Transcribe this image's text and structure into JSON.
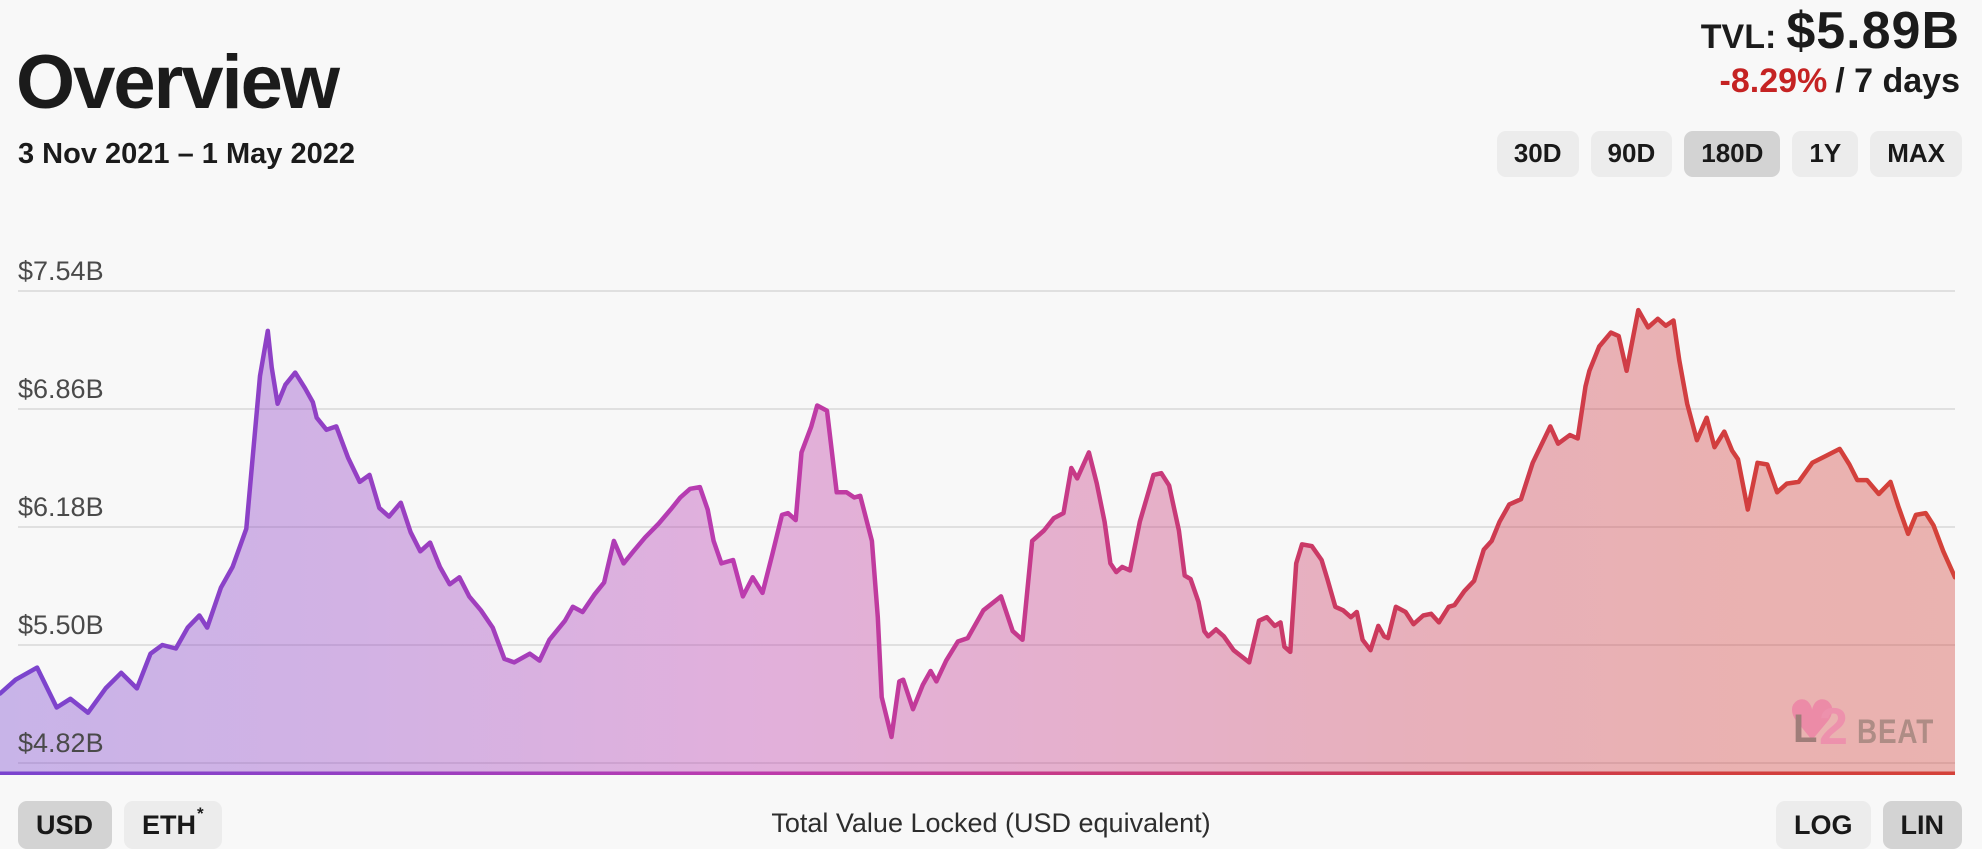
{
  "header": {
    "title": "Overview",
    "tvl_label": "TVL:",
    "tvl_value": "$5.89B",
    "change": "-8.29%",
    "change_period": "/ 7 days",
    "change_color": "#c52323"
  },
  "toolbar": {
    "date_range": "3 Nov 2021 – 1 May 2022",
    "range_buttons": [
      {
        "label": "30D",
        "selected": false
      },
      {
        "label": "90D",
        "selected": false
      },
      {
        "label": "180D",
        "selected": true
      },
      {
        "label": "1Y",
        "selected": false
      },
      {
        "label": "MAX",
        "selected": false
      }
    ]
  },
  "footer": {
    "currency_buttons": [
      {
        "label": "USD",
        "suffix": "",
        "selected": true
      },
      {
        "label": "ETH",
        "suffix": "*",
        "selected": false
      }
    ],
    "scale_buttons": [
      {
        "label": "LOG",
        "selected": false
      },
      {
        "label": "LIN",
        "selected": true
      }
    ],
    "caption": "Total Value Locked (USD equivalent)"
  },
  "watermark": {
    "prefix": "L",
    "digit": "2",
    "suffix": "BEAT",
    "heart_icon": "♥"
  },
  "chart_data": {
    "type": "area",
    "title": "Total Value Locked (USD equivalent)",
    "x_start": "3 Nov 2021",
    "x_end": "1 May 2022",
    "x_unit": "fraction of 180-day window",
    "y_unit": "USD billions",
    "ylim": [
      4.82,
      7.54
    ],
    "y_ticks": [
      "$7.54B",
      "$6.86B",
      "$6.18B",
      "$5.50B",
      "$4.82B"
    ],
    "y_tick_values": [
      7.54,
      6.86,
      6.18,
      5.5,
      4.82
    ],
    "grid": true,
    "legend": false,
    "gradient_stops": [
      {
        "offset": "0%",
        "color": "#7a44ce"
      },
      {
        "offset": "18%",
        "color": "#9440c4"
      },
      {
        "offset": "38%",
        "color": "#bc3bae"
      },
      {
        "offset": "55%",
        "color": "#c73a86"
      },
      {
        "offset": "72%",
        "color": "#cc3a58"
      },
      {
        "offset": "88%",
        "color": "#d23e3e"
      },
      {
        "offset": "100%",
        "color": "#d4423a"
      }
    ],
    "fill_opacity": 0.38,
    "points": [
      [
        0,
        5.22
      ],
      [
        0.008,
        5.3
      ],
      [
        0.019,
        5.37
      ],
      [
        0.029,
        5.14
      ],
      [
        0.036,
        5.19
      ],
      [
        0.045,
        5.11
      ],
      [
        0.054,
        5.25
      ],
      [
        0.062,
        5.34
      ],
      [
        0.07,
        5.25
      ],
      [
        0.077,
        5.45
      ],
      [
        0.083,
        5.5
      ],
      [
        0.09,
        5.48
      ],
      [
        0.096,
        5.6
      ],
      [
        0.102,
        5.67
      ],
      [
        0.106,
        5.6
      ],
      [
        0.113,
        5.83
      ],
      [
        0.119,
        5.95
      ],
      [
        0.126,
        6.17
      ],
      [
        0.129,
        6.55
      ],
      [
        0.133,
        7.05
      ],
      [
        0.137,
        7.31
      ],
      [
        0.139,
        7.1
      ],
      [
        0.142,
        6.89
      ],
      [
        0.146,
        7.0
      ],
      [
        0.151,
        7.07
      ],
      [
        0.156,
        6.98
      ],
      [
        0.16,
        6.9
      ],
      [
        0.162,
        6.81
      ],
      [
        0.167,
        6.74
      ],
      [
        0.172,
        6.76
      ],
      [
        0.178,
        6.58
      ],
      [
        0.184,
        6.44
      ],
      [
        0.189,
        6.48
      ],
      [
        0.194,
        6.29
      ],
      [
        0.199,
        6.24
      ],
      [
        0.205,
        6.32
      ],
      [
        0.21,
        6.15
      ],
      [
        0.215,
        6.04
      ],
      [
        0.22,
        6.09
      ],
      [
        0.225,
        5.95
      ],
      [
        0.23,
        5.85
      ],
      [
        0.235,
        5.89
      ],
      [
        0.24,
        5.78
      ],
      [
        0.246,
        5.7
      ],
      [
        0.252,
        5.6
      ],
      [
        0.258,
        5.42
      ],
      [
        0.263,
        5.4
      ],
      [
        0.271,
        5.45
      ],
      [
        0.276,
        5.41
      ],
      [
        0.281,
        5.53
      ],
      [
        0.289,
        5.64
      ],
      [
        0.293,
        5.72
      ],
      [
        0.298,
        5.69
      ],
      [
        0.304,
        5.79
      ],
      [
        0.309,
        5.86
      ],
      [
        0.314,
        6.1
      ],
      [
        0.319,
        5.97
      ],
      [
        0.324,
        6.04
      ],
      [
        0.33,
        6.12
      ],
      [
        0.337,
        6.2
      ],
      [
        0.343,
        6.28
      ],
      [
        0.348,
        6.35
      ],
      [
        0.353,
        6.4
      ],
      [
        0.358,
        6.41
      ],
      [
        0.362,
        6.28
      ],
      [
        0.365,
        6.1
      ],
      [
        0.369,
        5.97
      ],
      [
        0.375,
        5.99
      ],
      [
        0.38,
        5.78
      ],
      [
        0.385,
        5.89
      ],
      [
        0.39,
        5.8
      ],
      [
        0.395,
        6.02
      ],
      [
        0.4,
        6.25
      ],
      [
        0.403,
        6.26
      ],
      [
        0.407,
        6.22
      ],
      [
        0.41,
        6.61
      ],
      [
        0.415,
        6.76
      ],
      [
        0.418,
        6.88
      ],
      [
        0.423,
        6.85
      ],
      [
        0.428,
        6.38
      ],
      [
        0.433,
        6.38
      ],
      [
        0.437,
        6.35
      ],
      [
        0.44,
        6.36
      ],
      [
        0.446,
        6.1
      ],
      [
        0.449,
        5.66
      ],
      [
        0.451,
        5.2
      ],
      [
        0.456,
        4.97
      ],
      [
        0.46,
        5.29
      ],
      [
        0.462,
        5.3
      ],
      [
        0.467,
        5.13
      ],
      [
        0.472,
        5.27
      ],
      [
        0.476,
        5.35
      ],
      [
        0.479,
        5.29
      ],
      [
        0.484,
        5.41
      ],
      [
        0.49,
        5.52
      ],
      [
        0.495,
        5.54
      ],
      [
        0.503,
        5.7
      ],
      [
        0.512,
        5.78
      ],
      [
        0.518,
        5.58
      ],
      [
        0.523,
        5.53
      ],
      [
        0.528,
        6.1
      ],
      [
        0.534,
        6.16
      ],
      [
        0.539,
        6.23
      ],
      [
        0.544,
        6.26
      ],
      [
        0.548,
        6.52
      ],
      [
        0.551,
        6.46
      ],
      [
        0.557,
        6.61
      ],
      [
        0.561,
        6.43
      ],
      [
        0.565,
        6.21
      ],
      [
        0.568,
        5.97
      ],
      [
        0.571,
        5.92
      ],
      [
        0.574,
        5.95
      ],
      [
        0.578,
        5.93
      ],
      [
        0.583,
        6.21
      ],
      [
        0.59,
        6.48
      ],
      [
        0.594,
        6.49
      ],
      [
        0.598,
        6.42
      ],
      [
        0.603,
        6.16
      ],
      [
        0.606,
        5.9
      ],
      [
        0.609,
        5.88
      ],
      [
        0.613,
        5.75
      ],
      [
        0.616,
        5.58
      ],
      [
        0.618,
        5.55
      ],
      [
        0.622,
        5.59
      ],
      [
        0.626,
        5.55
      ],
      [
        0.631,
        5.47
      ],
      [
        0.639,
        5.4
      ],
      [
        0.644,
        5.64
      ],
      [
        0.648,
        5.66
      ],
      [
        0.652,
        5.61
      ],
      [
        0.655,
        5.63
      ],
      [
        0.657,
        5.49
      ],
      [
        0.66,
        5.46
      ],
      [
        0.663,
        5.97
      ],
      [
        0.666,
        6.08
      ],
      [
        0.671,
        6.07
      ],
      [
        0.676,
        5.99
      ],
      [
        0.679,
        5.88
      ],
      [
        0.683,
        5.72
      ],
      [
        0.687,
        5.7
      ],
      [
        0.691,
        5.66
      ],
      [
        0.694,
        5.69
      ],
      [
        0.697,
        5.53
      ],
      [
        0.701,
        5.47
      ],
      [
        0.705,
        5.61
      ],
      [
        0.708,
        5.55
      ],
      [
        0.71,
        5.54
      ],
      [
        0.714,
        5.72
      ],
      [
        0.719,
        5.69
      ],
      [
        0.723,
        5.62
      ],
      [
        0.728,
        5.67
      ],
      [
        0.732,
        5.68
      ],
      [
        0.736,
        5.63
      ],
      [
        0.741,
        5.72
      ],
      [
        0.744,
        5.73
      ],
      [
        0.749,
        5.81
      ],
      [
        0.754,
        5.87
      ],
      [
        0.759,
        6.05
      ],
      [
        0.763,
        6.1
      ],
      [
        0.767,
        6.21
      ],
      [
        0.772,
        6.31
      ],
      [
        0.778,
        6.34
      ],
      [
        0.784,
        6.55
      ],
      [
        0.793,
        6.76
      ],
      [
        0.797,
        6.66
      ],
      [
        0.803,
        6.71
      ],
      [
        0.807,
        6.69
      ],
      [
        0.811,
        6.99
      ],
      [
        0.813,
        7.08
      ],
      [
        0.818,
        7.22
      ],
      [
        0.824,
        7.3
      ],
      [
        0.828,
        7.28
      ],
      [
        0.832,
        7.08
      ],
      [
        0.838,
        7.43
      ],
      [
        0.843,
        7.33
      ],
      [
        0.848,
        7.38
      ],
      [
        0.852,
        7.34
      ],
      [
        0.856,
        7.37
      ],
      [
        0.859,
        7.14
      ],
      [
        0.863,
        6.89
      ],
      [
        0.868,
        6.68
      ],
      [
        0.873,
        6.81
      ],
      [
        0.877,
        6.64
      ],
      [
        0.882,
        6.73
      ],
      [
        0.886,
        6.62
      ],
      [
        0.889,
        6.57
      ],
      [
        0.894,
        6.28
      ],
      [
        0.899,
        6.55
      ],
      [
        0.904,
        6.54
      ],
      [
        0.909,
        6.38
      ],
      [
        0.914,
        6.43
      ],
      [
        0.92,
        6.44
      ],
      [
        0.927,
        6.55
      ],
      [
        0.934,
        6.59
      ],
      [
        0.941,
        6.63
      ],
      [
        0.946,
        6.54
      ],
      [
        0.95,
        6.45
      ],
      [
        0.955,
        6.45
      ],
      [
        0.961,
        6.37
      ],
      [
        0.967,
        6.44
      ],
      [
        0.971,
        6.3
      ],
      [
        0.976,
        6.14
      ],
      [
        0.98,
        6.25
      ],
      [
        0.985,
        6.26
      ],
      [
        0.989,
        6.19
      ],
      [
        0.994,
        6.04
      ],
      [
        1,
        5.89
      ]
    ]
  }
}
